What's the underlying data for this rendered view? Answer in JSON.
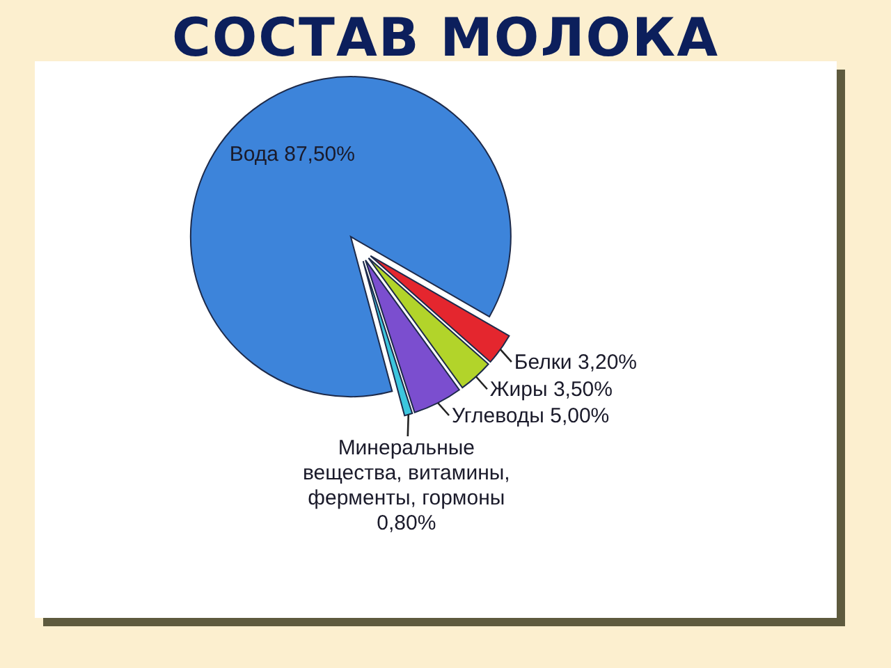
{
  "chart_data": {
    "type": "pie",
    "title": "СОСТАВ МОЛОКА",
    "categories": [
      "Вода",
      "Белки",
      "Жиры",
      "Углеводы",
      "Минеральные вещества, витамины, ферменты, гормоны"
    ],
    "values": [
      87.5,
      3.2,
      3.5,
      5.0,
      0.8
    ],
    "value_labels": [
      "87,50%",
      "3,20%",
      "3,50%",
      "5,00%",
      "0,80%"
    ],
    "colors": [
      "#3d84da",
      "#e4262e",
      "#b2d42a",
      "#7b4ecf",
      "#3cc6de"
    ]
  }
}
